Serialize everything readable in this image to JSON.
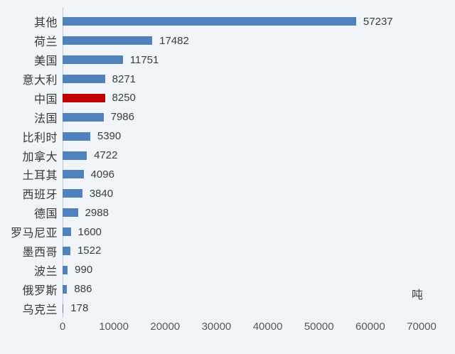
{
  "chart_data": {
    "type": "bar",
    "orientation": "horizontal",
    "title": "",
    "categories": [
      "其他",
      "荷兰",
      "美国",
      "意大利",
      "中国",
      "法国",
      "比利时",
      "加拿大",
      "土耳其",
      "西班牙",
      "德国",
      "罗马尼亚",
      "墨西哥",
      "波兰",
      "俄罗斯",
      "乌克兰"
    ],
    "values": [
      57237,
      17482,
      11751,
      8271,
      8250,
      7986,
      5390,
      4722,
      4096,
      3840,
      2988,
      1600,
      1522,
      990,
      886,
      178
    ],
    "data_labels": [
      "57237",
      "17482",
      "11751",
      "8271",
      "8250",
      "7986",
      "5390",
      "4722",
      "4096",
      "3840",
      "2988",
      "1600",
      "1522",
      "990",
      "886",
      "178"
    ],
    "highlight_category": "中国",
    "highlight_index": 4,
    "xlabel": "吨",
    "ylabel": "",
    "xlim": [
      0,
      70000
    ],
    "x_ticks": [
      "0",
      "10000",
      "20000",
      "30000",
      "40000",
      "50000",
      "60000",
      "70000"
    ],
    "grid": false,
    "legend": false,
    "colors": {
      "bar": "#4f81bd",
      "highlight_bar": "#c00000",
      "background": "#f1f4f8",
      "axis_line": "#c3c8ce",
      "category_text": "#383838",
      "value_text": "#3d3d3d",
      "tick_text": "#55595e"
    }
  }
}
